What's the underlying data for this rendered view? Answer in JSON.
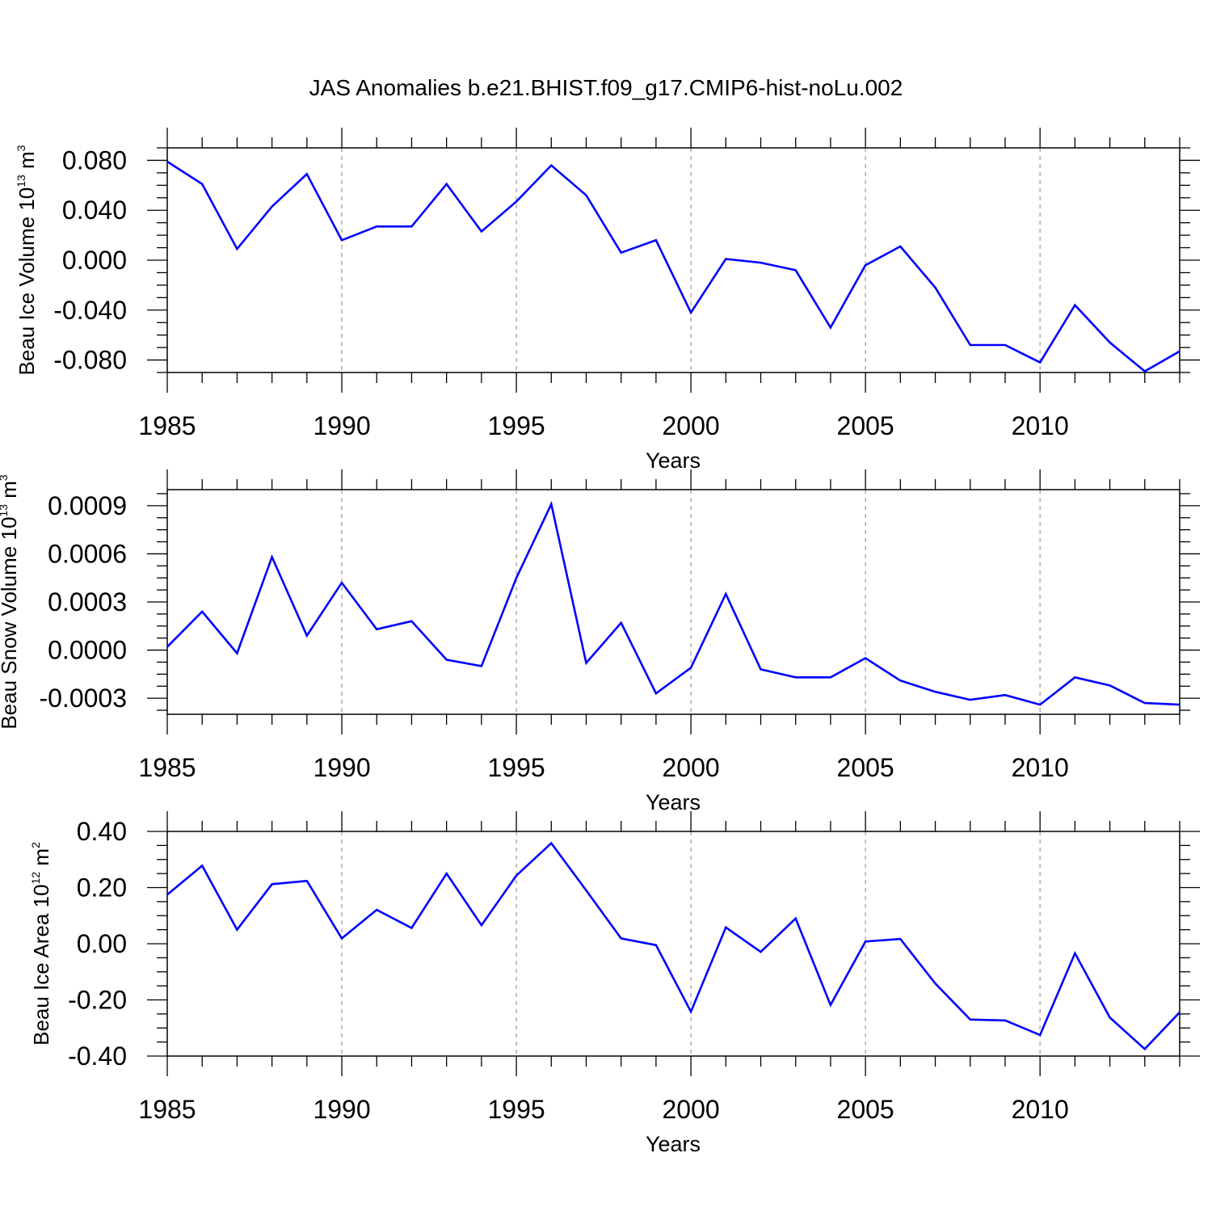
{
  "figure_title": "JAS Anomalies b.e21.BHIST.f09_g17.CMIP6-hist-noLu.002",
  "line_color": "#0000ff",
  "grid_color": "#999999",
  "chart_data": [
    {
      "type": "line",
      "ylabel": {
        "text": "Beau Ice Volume 10",
        "exp": "13",
        "unit": " m",
        "unit_exp": "3"
      },
      "xlabel": "Years",
      "xlim": [
        1985,
        2014
      ],
      "ylim": [
        -0.09,
        0.09
      ],
      "xticks": [
        1985,
        1990,
        1995,
        2000,
        2005,
        2010
      ],
      "xtick_labels": [
        "1985",
        "1990",
        "1995",
        "2000",
        "2005",
        "2010"
      ],
      "yticks": [
        0.08,
        0.04,
        0.0,
        -0.04,
        -0.08
      ],
      "ytick_labels": [
        "0.080",
        "0.040",
        "0.000",
        "-0.040",
        "-0.080"
      ],
      "grid": "vertical dashed at labeled years",
      "x": [
        1985,
        1986,
        1987,
        1988,
        1989,
        1990,
        1991,
        1992,
        1993,
        1994,
        1995,
        1996,
        1997,
        1998,
        1999,
        2000,
        2001,
        2002,
        2003,
        2004,
        2005,
        2006,
        2007,
        2008,
        2009,
        2010,
        2011,
        2012,
        2013,
        2014
      ],
      "values": [
        0.079,
        0.061,
        0.009,
        0.043,
        0.069,
        0.016,
        0.027,
        0.027,
        0.061,
        0.023,
        0.047,
        0.076,
        0.052,
        0.006,
        0.016,
        -0.042,
        0.001,
        -0.002,
        -0.008,
        -0.054,
        -0.004,
        0.011,
        -0.022,
        -0.068,
        -0.068,
        -0.082,
        -0.036,
        -0.066,
        -0.089,
        -0.073
      ]
    },
    {
      "type": "line",
      "ylabel": {
        "text": "Beau Snow Volume 10",
        "exp": "13",
        "unit": " m",
        "unit_exp": "3"
      },
      "xlabel": "Years",
      "xlim": [
        1985,
        2014
      ],
      "ylim": [
        -0.0004,
        0.001
      ],
      "xticks": [
        1985,
        1990,
        1995,
        2000,
        2005,
        2010
      ],
      "xtick_labels": [
        "1985",
        "1990",
        "1995",
        "2000",
        "2005",
        "2010"
      ],
      "yticks": [
        0.0009,
        0.0006,
        0.0003,
        0.0,
        -0.0003
      ],
      "ytick_labels": [
        "0.0009",
        "0.0006",
        "0.0003",
        "0.0000",
        "-0.0003"
      ],
      "grid": "vertical dashed at labeled years",
      "x": [
        1985,
        1986,
        1987,
        1988,
        1989,
        1990,
        1991,
        1992,
        1993,
        1994,
        1995,
        1996,
        1997,
        1998,
        1999,
        2000,
        2001,
        2002,
        2003,
        2004,
        2005,
        2006,
        2007,
        2008,
        2009,
        2010,
        2011,
        2012,
        2013,
        2014
      ],
      "values": [
        2e-05,
        0.00024,
        -2e-05,
        0.00058,
        9e-05,
        0.00042,
        0.00013,
        0.00018,
        -6e-05,
        -0.0001,
        0.00045,
        0.00091,
        -8e-05,
        0.00017,
        -0.00027,
        -0.00011,
        0.00035,
        -0.00012,
        -0.00017,
        -0.00017,
        -5e-05,
        -0.00019,
        -0.00026,
        -0.00031,
        -0.00028,
        -0.00034,
        -0.00017,
        -0.00022,
        -0.00033,
        -0.00034
      ]
    },
    {
      "type": "line",
      "ylabel": {
        "text": "Beau Ice Area 10",
        "exp": "12",
        "unit": " m",
        "unit_exp": "2"
      },
      "xlabel": "Years",
      "xlim": [
        1985,
        2014
      ],
      "ylim": [
        -0.4,
        0.4
      ],
      "xticks": [
        1985,
        1990,
        1995,
        2000,
        2005,
        2010
      ],
      "xtick_labels": [
        "1985",
        "1990",
        "1995",
        "2000",
        "2005",
        "2010"
      ],
      "yticks": [
        0.4,
        0.2,
        0.0,
        -0.2,
        -0.4
      ],
      "ytick_labels": [
        "0.40",
        "0.20",
        "0.00",
        "-0.20",
        "-0.40"
      ],
      "grid": "vertical dashed at labeled years",
      "x": [
        1985,
        1986,
        1987,
        1988,
        1989,
        1990,
        1991,
        1992,
        1993,
        1994,
        1995,
        1996,
        1997,
        1998,
        1999,
        2000,
        2001,
        2002,
        2003,
        2004,
        2005,
        2006,
        2007,
        2008,
        2009,
        2010,
        2011,
        2012,
        2013,
        2014
      ],
      "values": [
        0.175,
        0.278,
        0.05,
        0.212,
        0.224,
        0.019,
        0.121,
        0.056,
        0.25,
        0.066,
        0.243,
        0.358,
        0.19,
        0.019,
        -0.005,
        -0.242,
        0.058,
        -0.029,
        0.09,
        -0.218,
        0.008,
        0.017,
        -0.142,
        -0.27,
        -0.273,
        -0.325,
        -0.034,
        -0.263,
        -0.375,
        -0.244
      ]
    }
  ]
}
